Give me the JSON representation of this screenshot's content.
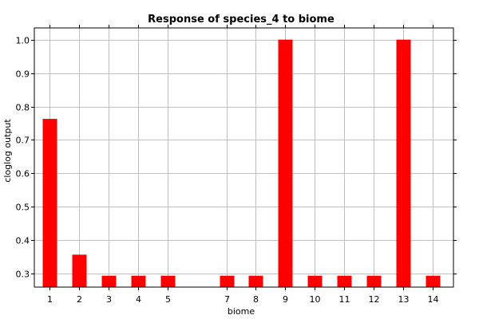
{
  "chart_data": {
    "type": "bar",
    "title": "Response of species_4 to biome",
    "xlabel": "biome",
    "ylabel": "cloglog output",
    "categories": [
      "1",
      "2",
      "3",
      "4",
      "5",
      "7",
      "8",
      "9",
      "10",
      "11",
      "12",
      "13",
      "14"
    ],
    "values": [
      0.763,
      0.357,
      0.294,
      0.294,
      0.294,
      0.294,
      0.294,
      1.0,
      0.294,
      0.294,
      0.294,
      1.0,
      0.294
    ],
    "ylim": [
      0.26,
      1.035
    ],
    "yticks": [
      "0.3",
      "0.4",
      "0.5",
      "0.6",
      "0.7",
      "0.8",
      "0.9",
      "1.0"
    ],
    "grid": true,
    "legend": "none",
    "bar_color": "#ff0000",
    "grid_color": "#c0c0c0",
    "axis_color": "#000000"
  }
}
